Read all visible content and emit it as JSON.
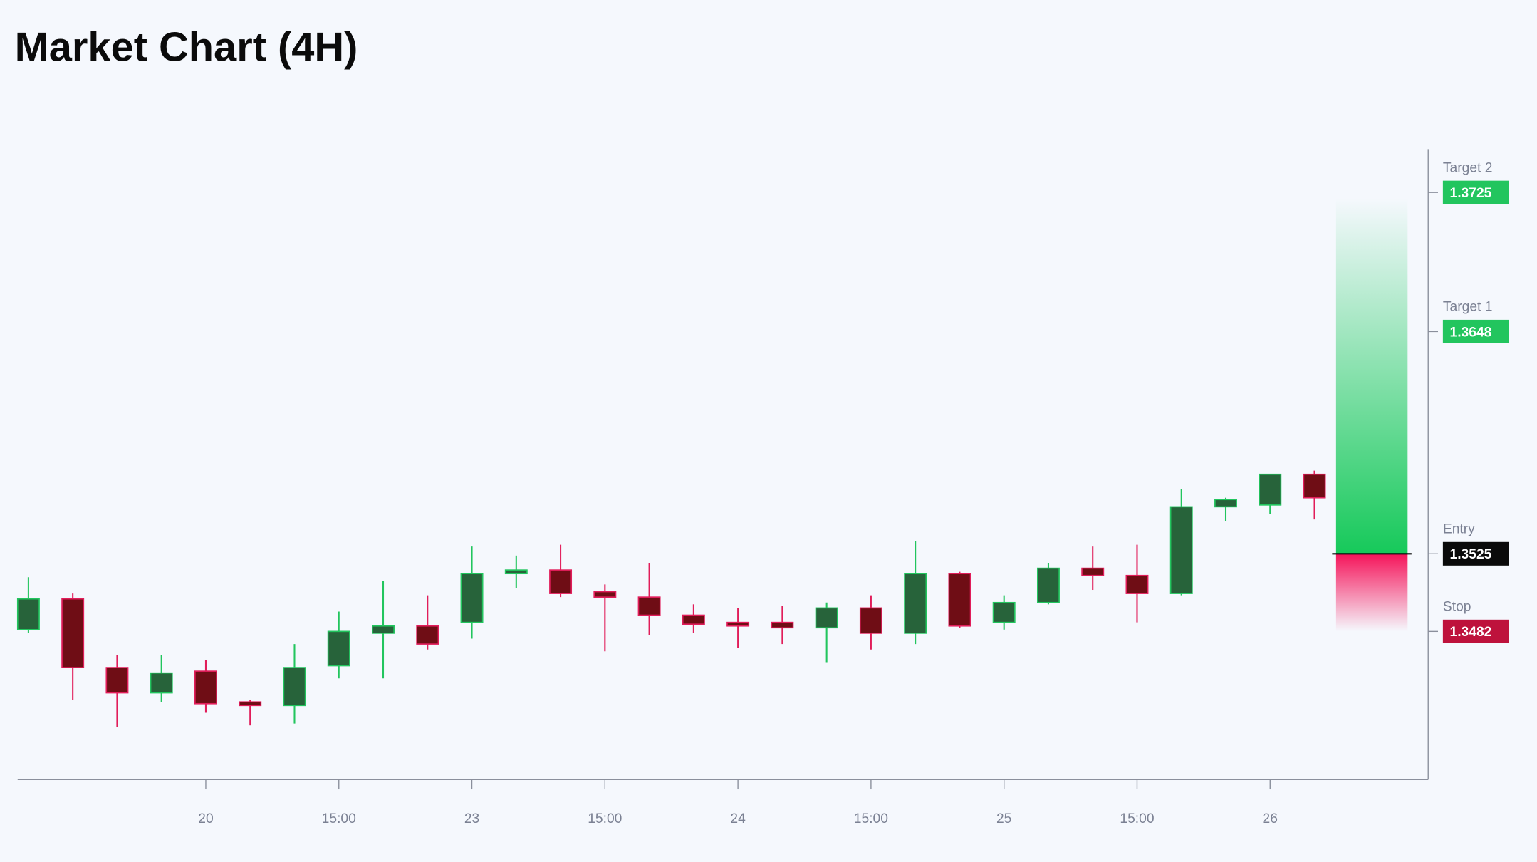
{
  "chart_data": {
    "type": "candlestick",
    "title": "Market Chart (4H)",
    "categories": [
      null,
      null,
      null,
      null,
      "20",
      null,
      null,
      "15:00",
      null,
      null,
      "23",
      null,
      null,
      "15:00",
      null,
      null,
      "24",
      null,
      null,
      "15:00",
      null,
      null,
      "25",
      null,
      null,
      "15:00",
      null,
      null,
      "26",
      null
    ],
    "open": [
      1.3483,
      1.35,
      1.3462,
      1.3448,
      1.346,
      1.3443,
      1.3441,
      1.3463,
      1.3481,
      1.3485,
      1.3487,
      1.3514,
      1.3516,
      1.3504,
      1.3501,
      1.3491,
      1.3487,
      1.3487,
      1.3484,
      1.3495,
      1.3481,
      1.3514,
      1.3487,
      1.3498,
      1.3517,
      1.3513,
      1.3503,
      1.3551,
      1.3552,
      1.3569
    ],
    "high": [
      1.3512,
      1.3503,
      1.3469,
      1.3469,
      1.3466,
      1.3444,
      1.3475,
      1.3493,
      1.351,
      1.3502,
      1.3529,
      1.3524,
      1.353,
      1.3508,
      1.352,
      1.3497,
      1.3495,
      1.3496,
      1.3498,
      1.3502,
      1.3532,
      1.3515,
      1.3502,
      1.352,
      1.3529,
      1.353,
      1.3561,
      1.3556,
      1.3569,
      1.3571
    ],
    "low": [
      1.3481,
      1.3444,
      1.3429,
      1.3443,
      1.3437,
      1.343,
      1.3431,
      1.3456,
      1.3456,
      1.3472,
      1.3478,
      1.3506,
      1.3501,
      1.3471,
      1.348,
      1.3481,
      1.3473,
      1.3475,
      1.3465,
      1.3472,
      1.3475,
      1.3484,
      1.3483,
      1.3497,
      1.3505,
      1.3487,
      1.3502,
      1.3543,
      1.3547,
      1.3544
    ],
    "close": [
      1.35,
      1.3462,
      1.3448,
      1.3459,
      1.3442,
      1.3441,
      1.3462,
      1.3482,
      1.3485,
      1.3475,
      1.3514,
      1.3516,
      1.3503,
      1.3501,
      1.3491,
      1.3486,
      1.3485,
      1.3484,
      1.3495,
      1.3481,
      1.3514,
      1.3485,
      1.3498,
      1.3517,
      1.3513,
      1.3503,
      1.3551,
      1.3555,
      1.3569,
      1.3556
    ],
    "up_color": "#22c55e",
    "down_color": "#e11d5a",
    "ylim": [
      1.34,
      1.3749
    ],
    "levels": [
      {
        "label": "Target 2",
        "value": 1.3725,
        "color": "#22c55e"
      },
      {
        "label": "Target 1",
        "value": 1.3648,
        "color": "#22c55e"
      },
      {
        "label": "Entry",
        "value": 1.3525,
        "color": "#0a0a0a"
      },
      {
        "label": "Stop",
        "value": 1.3482,
        "color": "#be123c"
      }
    ]
  }
}
